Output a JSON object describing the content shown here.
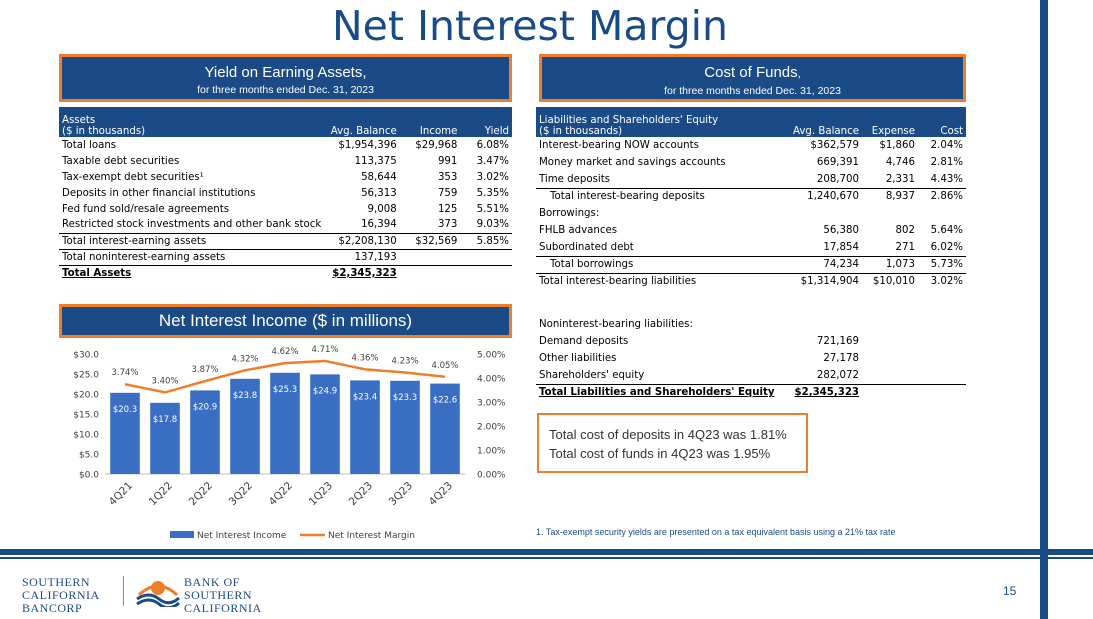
{
  "title": "Net Interest Margin",
  "yield_banner": {
    "title": "Yield on Earning Assets,",
    "subtitle": "for three months ended Dec. 31, 2023"
  },
  "cost_banner": {
    "title": "Cost of Funds",
    "title_comma": ",",
    "subtitle": "for three months ended Dec. 31, 2023"
  },
  "nii_banner": {
    "title": "Net Interest Income ($ in millions)"
  },
  "assets_table": {
    "header": {
      "line1": "Assets",
      "line2": "($ in thousands)",
      "col1": "Avg. Balance",
      "col2": "Income",
      "col3": "Yield"
    },
    "rows": [
      {
        "label": "Total loans",
        "balance": "$1,954,396",
        "income": "$29,968",
        "yield": "6.08%"
      },
      {
        "label": "Taxable debt securities",
        "balance": "113,375",
        "income": "991",
        "yield": "3.47%"
      },
      {
        "label": "Tax-exempt debt securities¹",
        "balance": "58,644",
        "income": "353",
        "yield": "3.02%"
      },
      {
        "label": "Deposits in other financial institutions",
        "balance": "56,313",
        "income": "759",
        "yield": "5.35%"
      },
      {
        "label": "Fed fund sold/resale agreements",
        "balance": "9,008",
        "income": "125",
        "yield": "5.51%"
      },
      {
        "label": "Restricted stock investments and other bank stock",
        "balance": "16,394",
        "income": "373",
        "yield": "9.03%"
      },
      {
        "label": "Total interest-earning assets",
        "balance": "$2,208,130",
        "income": "$32,569",
        "yield": "5.85%"
      },
      {
        "label": "Total noninterest-earning assets",
        "balance": "137,193",
        "income": "",
        "yield": ""
      },
      {
        "label": "Total  Assets",
        "balance": "$2,345,323",
        "income": "",
        "yield": ""
      }
    ]
  },
  "liabilities_table": {
    "header": {
      "line1": "Liabilities and Shareholders' Equity",
      "line2": "($ in thousands)",
      "col1": "Avg. Balance",
      "col2": "Expense",
      "col3": "Cost"
    },
    "rows": [
      {
        "label": "Interest-bearing NOW accounts",
        "balance": "$362,579",
        "expense": "$1,860",
        "cost": "2.04%"
      },
      {
        "label": "Money market and savings accounts",
        "balance": "669,391",
        "expense": "4,746",
        "cost": "2.81%"
      },
      {
        "label": "Time deposits",
        "balance": "208,700",
        "expense": "2,331",
        "cost": "4.43%"
      },
      {
        "label": "Total interest-bearing deposits",
        "balance": "1,240,670",
        "expense": "8,937",
        "cost": "2.86%"
      },
      {
        "label": "Borrowings:",
        "balance": "",
        "expense": "",
        "cost": ""
      },
      {
        "label": "FHLB advances",
        "balance": "56,380",
        "expense": "802",
        "cost": "5.64%"
      },
      {
        "label": "Subordinated debt",
        "balance": "17,854",
        "expense": "271",
        "cost": "6.02%"
      },
      {
        "label": "Total borrowings",
        "balance": "74,234",
        "expense": "1,073",
        "cost": "5.73%"
      },
      {
        "label": "Total interest-bearing liabilities",
        "balance": "$1,314,904",
        "expense": "$10,010",
        "cost": "3.02%"
      },
      {
        "label": "",
        "balance": "",
        "expense": "",
        "cost": ""
      },
      {
        "label": "Noninterest-bearing liabilities:",
        "balance": "",
        "expense": "",
        "cost": ""
      },
      {
        "label": "Demand deposits",
        "balance": "721,169",
        "expense": "",
        "cost": ""
      },
      {
        "label": "Other liabilities",
        "balance": "27,178",
        "expense": "",
        "cost": ""
      },
      {
        "label": "Shareholders' equity",
        "balance": "282,072",
        "expense": "",
        "cost": ""
      },
      {
        "label": "Total Liabilities and Shareholders' Equity",
        "balance": "$2,345,323",
        "expense": "",
        "cost": ""
      }
    ]
  },
  "callout": {
    "line1": "Total cost of deposits in 4Q23 was 1.81%",
    "line2": "Total cost of funds in 4Q23 was 1.95%"
  },
  "footnote": "1. Tax-exempt security yields are presented on a tax equivalent basis using a 21% tax rate",
  "page_number": "15",
  "logos": {
    "holding": [
      "Southern",
      "California",
      "Bancorp"
    ],
    "bank": [
      "Bank of",
      "Southern",
      "California"
    ]
  },
  "colors": {
    "brand_blue": "#1b4b86",
    "accent_orange": "#ee7d2d",
    "bar_blue": "#3a6ec2"
  },
  "chart_data": {
    "type": "bar",
    "categories": [
      "4Q21",
      "1Q22",
      "2Q22",
      "3Q22",
      "4Q22",
      "1Q23",
      "2Q23",
      "3Q23",
      "4Q23"
    ],
    "series": [
      {
        "name": "Net Interest Income",
        "type": "bar",
        "axis": "left",
        "values": [
          20.3,
          17.8,
          20.9,
          23.8,
          25.3,
          24.9,
          23.4,
          23.3,
          22.6
        ],
        "labels": [
          "$20.3",
          "$17.8",
          "$20.9",
          "$23.8",
          "$25.3",
          "$24.9",
          "$23.4",
          "$23.3",
          "$22.6"
        ]
      },
      {
        "name": "Net Interest Margin",
        "type": "line",
        "axis": "right",
        "values": [
          3.74,
          3.4,
          3.87,
          4.32,
          4.62,
          4.71,
          4.36,
          4.23,
          4.05
        ],
        "labels": [
          "3.74%",
          "3.40%",
          "3.87%",
          "4.32%",
          "4.62%",
          "4.71%",
          "4.36%",
          "4.23%",
          "4.05%"
        ]
      }
    ],
    "y_left": {
      "min": 0,
      "max": 30,
      "ticks": [
        "$0.0",
        "$5.0",
        "$10.0",
        "$15.0",
        "$20.0",
        "$25.0",
        "$30.0"
      ]
    },
    "y_right": {
      "min": 0,
      "max": 5,
      "ticks": [
        "0.00%",
        "1.00%",
        "2.00%",
        "3.00%",
        "4.00%",
        "5.00%"
      ]
    },
    "grid": false,
    "legend": "bottom"
  }
}
